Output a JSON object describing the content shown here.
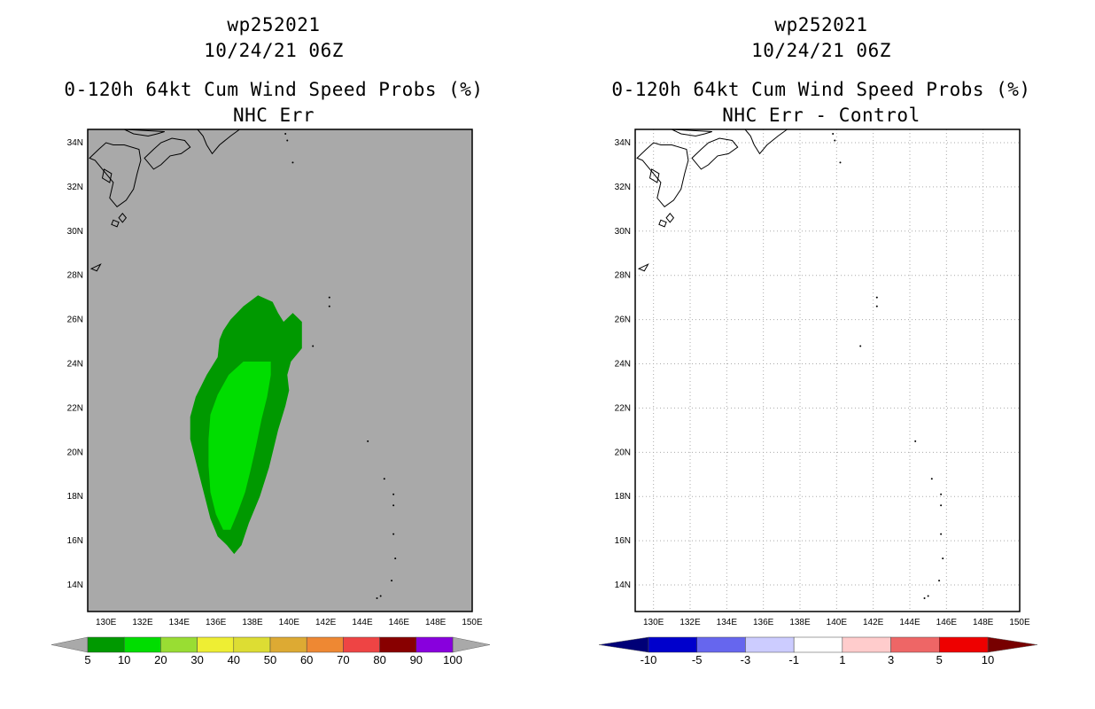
{
  "chart_data": [
    {
      "type": "heatmap",
      "storm_id": "wp252021",
      "date": "10/24/21 06Z",
      "title": "0-120h 64kt Cum Wind Speed Probs (%)",
      "subtitle": "NHC Err",
      "x_ticks": [
        "130E",
        "132E",
        "134E",
        "136E",
        "138E",
        "140E",
        "142E",
        "144E",
        "146E",
        "148E",
        "150E"
      ],
      "y_ticks": [
        "14N",
        "16N",
        "18N",
        "20N",
        "22N",
        "24N",
        "26N",
        "28N",
        "30N",
        "32N",
        "34N"
      ],
      "xlim": [
        129,
        150
      ],
      "ylim": [
        12.8,
        34.6
      ],
      "background_color": "#a9a9a9",
      "grid": false,
      "contours": [
        {
          "level": "5-10",
          "color": "#009900",
          "points": [
            [
              138.3,
              27.1
            ],
            [
              139.1,
              26.8
            ],
            [
              139.4,
              26.3
            ],
            [
              139.7,
              25.9
            ],
            [
              140.2,
              26.3
            ],
            [
              140.7,
              25.9
            ],
            [
              140.7,
              24.7
            ],
            [
              140.1,
              24.1
            ],
            [
              139.9,
              23.5
            ],
            [
              140.0,
              22.8
            ],
            [
              139.8,
              22.1
            ],
            [
              139.4,
              21.0
            ],
            [
              138.9,
              19.3
            ],
            [
              138.4,
              18.0
            ],
            [
              137.8,
              16.8
            ],
            [
              137.4,
              15.8
            ],
            [
              137.0,
              15.4
            ],
            [
              136.6,
              15.8
            ],
            [
              136.1,
              16.2
            ],
            [
              135.7,
              17.0
            ],
            [
              135.3,
              18.3
            ],
            [
              134.9,
              19.6
            ],
            [
              134.6,
              20.6
            ],
            [
              134.6,
              21.6
            ],
            [
              134.9,
              22.5
            ],
            [
              135.5,
              23.5
            ],
            [
              136.1,
              24.3
            ],
            [
              136.2,
              25.1
            ],
            [
              136.4,
              25.5
            ],
            [
              136.8,
              26.0
            ],
            [
              137.5,
              26.6
            ]
          ]
        },
        {
          "level": "10-20",
          "color": "#00dd00",
          "points": [
            [
              138.2,
              24.1
            ],
            [
              139.0,
              24.1
            ],
            [
              139.0,
              23.5
            ],
            [
              138.8,
              22.5
            ],
            [
              138.5,
              21.5
            ],
            [
              138.2,
              20.3
            ],
            [
              137.9,
              19.2
            ],
            [
              137.6,
              18.2
            ],
            [
              137.2,
              17.3
            ],
            [
              136.8,
              16.5
            ],
            [
              136.4,
              16.5
            ],
            [
              136.0,
              17.2
            ],
            [
              135.7,
              18.2
            ],
            [
              135.6,
              19.4
            ],
            [
              135.6,
              20.6
            ],
            [
              135.7,
              21.7
            ],
            [
              136.1,
              22.6
            ],
            [
              136.7,
              23.5
            ],
            [
              137.5,
              24.1
            ]
          ]
        }
      ],
      "colorbar": {
        "labels": [
          "5",
          "10",
          "20",
          "30",
          "40",
          "50",
          "60",
          "70",
          "80",
          "90",
          "100"
        ],
        "colors": [
          "#009900",
          "#00dd00",
          "#99dd33",
          "#eeee33",
          "#dddd33",
          "#ddaa33",
          "#ee8833",
          "#ee4444",
          "#880000",
          "#8800dd"
        ],
        "end_colors": [
          "#a9a9a9",
          "#a9a9a9"
        ]
      }
    },
    {
      "type": "heatmap",
      "storm_id": "wp252021",
      "date": "10/24/21 06Z",
      "title": "0-120h 64kt Cum Wind Speed Probs (%)",
      "subtitle": "NHC Err - Control",
      "x_ticks": [
        "130E",
        "132E",
        "134E",
        "136E",
        "138E",
        "140E",
        "142E",
        "144E",
        "146E",
        "148E",
        "150E"
      ],
      "y_ticks": [
        "14N",
        "16N",
        "18N",
        "20N",
        "22N",
        "24N",
        "26N",
        "28N",
        "30N",
        "32N",
        "34N"
      ],
      "xlim": [
        129,
        150
      ],
      "ylim": [
        12.8,
        34.6
      ],
      "background_color": "#ffffff",
      "grid": true,
      "contours": [],
      "colorbar": {
        "labels": [
          "-10",
          "-5",
          "-3",
          "-1",
          "1",
          "3",
          "5",
          "10"
        ],
        "colors": [
          "#0000cc",
          "#6666ee",
          "#ccccff",
          "#ffffff",
          "#ffcccc",
          "#ee6666",
          "#ee0000"
        ],
        "end_colors": [
          "#000077",
          "#770000"
        ]
      }
    }
  ]
}
